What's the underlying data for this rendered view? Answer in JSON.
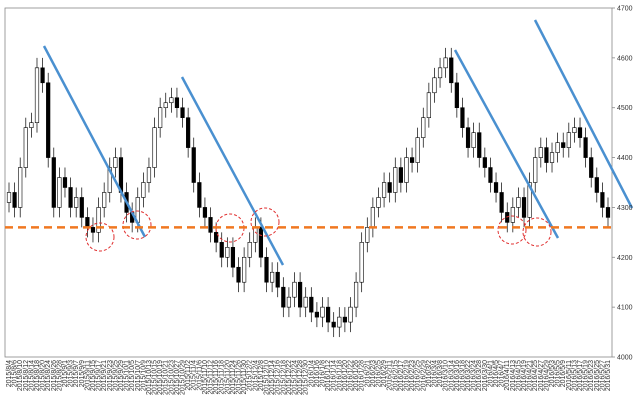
{
  "chart_data": {
    "type": "candlestick",
    "categories": [
      "2015/8/4",
      "2015/8/6",
      "2015/8/10",
      "2015/8/12",
      "2015/8/14",
      "2015/8/18",
      "2015/8/20",
      "2015/8/24",
      "2015/8/26",
      "2015/8/28",
      "2015/9/1",
      "2015/9/3",
      "2015/9/7",
      "2015/9/9",
      "2015/9/11",
      "2015/9/15",
      "2015/9/17",
      "2015/9/21",
      "2015/9/23",
      "2015/9/25",
      "2015/9/29",
      "2015/10/1",
      "2015/10/5",
      "2015/10/7",
      "2015/10/9",
      "2015/10/13",
      "2015/10/15",
      "2015/10/19",
      "2015/10/21",
      "2015/10/23",
      "2015/10/27",
      "2015/10/29",
      "2015/11/2",
      "2015/11/4",
      "2015/11/6",
      "2015/11/10",
      "2015/11/12",
      "2015/11/16",
      "2015/11/18",
      "2015/11/20",
      "2015/11/24",
      "2015/11/26",
      "2015/11/30",
      "2015/12/2",
      "2015/12/4",
      "2015/12/8",
      "2015/12/10",
      "2015/12/14",
      "2015/12/16",
      "2015/12/18",
      "2015/12/22",
      "2015/12/24",
      "2015/12/28",
      "2015/12/30",
      "2016/1/4",
      "2016/1/6",
      "2016/1/8",
      "2016/1/12",
      "2016/1/14",
      "2016/1/18",
      "2016/1/20",
      "2016/1/22",
      "2016/1/26",
      "2016/1/28",
      "2016/2/1",
      "2016/2/3",
      "2016/2/5",
      "2016/2/9",
      "2016/2/11",
      "2016/2/15",
      "2016/2/17",
      "2016/2/19",
      "2016/2/23",
      "2016/2/25",
      "2016/2/29",
      "2016/3/2",
      "2016/3/4",
      "2016/3/8",
      "2016/3/10",
      "2016/3/14",
      "2016/3/16",
      "2016/3/18",
      "2016/3/22",
      "2016/3/24",
      "2016/3/28",
      "2016/3/30",
      "2016/4/1",
      "2016/4/5",
      "2016/4/7",
      "2016/4/11",
      "2016/4/13",
      "2016/4/15",
      "2016/4/19",
      "2016/4/21",
      "2016/4/25",
      "2016/4/27",
      "2016/4/29",
      "2016/5/3",
      "2016/5/5",
      "2016/5/9",
      "2016/5/11",
      "2016/5/13",
      "2016/5/17",
      "2016/5/19",
      "2016/5/23",
      "2016/5/25",
      "2016/5/27",
      "2016/5/31"
    ],
    "open": [
      4310,
      4330,
      4300,
      4380,
      4460,
      4470,
      4580,
      4550,
      4400,
      4300,
      4360,
      4340,
      4300,
      4320,
      4280,
      4260,
      4250,
      4300,
      4330,
      4380,
      4400,
      4330,
      4290,
      4270,
      4320,
      4350,
      4380,
      4460,
      4500,
      4510,
      4520,
      4500,
      4480,
      4420,
      4350,
      4300,
      4280,
      4250,
      4230,
      4200,
      4220,
      4180,
      4150,
      4200,
      4230,
      4260,
      4200,
      4150,
      4170,
      4140,
      4100,
      4120,
      4150,
      4100,
      4120,
      4090,
      4080,
      4100,
      4070,
      4060,
      4080,
      4070,
      4100,
      4150,
      4230,
      4260,
      4300,
      4320,
      4350,
      4330,
      4380,
      4350,
      4400,
      4390,
      4440,
      4480,
      4530,
      4560,
      4580,
      4600,
      4550,
      4500,
      4460,
      4420,
      4450,
      4400,
      4380,
      4350,
      4330,
      4290,
      4270,
      4300,
      4320,
      4280,
      4350,
      4400,
      4420,
      4390,
      4410,
      4430,
      4420,
      4450,
      4460,
      4440,
      4400,
      4360,
      4330,
      4300
    ],
    "high": [
      4350,
      4350,
      4400,
      4480,
      4490,
      4600,
      4600,
      4570,
      4420,
      4380,
      4380,
      4360,
      4340,
      4340,
      4300,
      4280,
      4320,
      4350,
      4400,
      4420,
      4420,
      4350,
      4310,
      4340,
      4370,
      4400,
      4480,
      4520,
      4530,
      4540,
      4540,
      4520,
      4500,
      4440,
      4370,
      4320,
      4300,
      4270,
      4250,
      4240,
      4240,
      4200,
      4220,
      4250,
      4280,
      4280,
      4220,
      4190,
      4190,
      4160,
      4140,
      4170,
      4170,
      4140,
      4140,
      4110,
      4120,
      4120,
      4090,
      4100,
      4100,
      4120,
      4170,
      4250,
      4280,
      4320,
      4340,
      4370,
      4370,
      4400,
      4400,
      4420,
      4420,
      4460,
      4500,
      4550,
      4580,
      4600,
      4620,
      4620,
      4570,
      4520,
      4480,
      4470,
      4470,
      4420,
      4400,
      4370,
      4350,
      4310,
      4320,
      4340,
      4340,
      4370,
      4420,
      4440,
      4440,
      4430,
      4450,
      4450,
      4470,
      4480,
      4480,
      4460,
      4420,
      4380,
      4350,
      4320
    ],
    "low": [
      4290,
      4280,
      4280,
      4360,
      4440,
      4450,
      4530,
      4380,
      4280,
      4280,
      4320,
      4280,
      4280,
      4260,
      4240,
      4230,
      4230,
      4280,
      4310,
      4360,
      4310,
      4270,
      4250,
      4250,
      4300,
      4330,
      4360,
      4440,
      4480,
      4490,
      4480,
      4460,
      4400,
      4330,
      4280,
      4260,
      4230,
      4210,
      4180,
      4180,
      4160,
      4130,
      4130,
      4180,
      4210,
      4180,
      4130,
      4130,
      4120,
      4080,
      4080,
      4100,
      4080,
      4080,
      4070,
      4060,
      4060,
      4050,
      4040,
      4040,
      4050,
      4050,
      4080,
      4130,
      4210,
      4240,
      4280,
      4300,
      4310,
      4310,
      4330,
      4330,
      4370,
      4370,
      4420,
      4460,
      4510,
      4540,
      4560,
      4530,
      4480,
      4440,
      4400,
      4400,
      4380,
      4360,
      4330,
      4310,
      4270,
      4250,
      4250,
      4280,
      4260,
      4260,
      4330,
      4380,
      4370,
      4370,
      4390,
      4400,
      4400,
      4430,
      4420,
      4380,
      4340,
      4310,
      4280,
      4260
    ],
    "close": [
      4330,
      4300,
      4380,
      4460,
      4470,
      4580,
      4550,
      4400,
      4300,
      4360,
      4340,
      4300,
      4320,
      4280,
      4260,
      4250,
      4300,
      4330,
      4380,
      4400,
      4330,
      4290,
      4270,
      4320,
      4350,
      4380,
      4460,
      4500,
      4510,
      4520,
      4500,
      4480,
      4420,
      4350,
      4300,
      4280,
      4250,
      4230,
      4200,
      4220,
      4180,
      4150,
      4200,
      4230,
      4260,
      4200,
      4150,
      4170,
      4140,
      4100,
      4120,
      4150,
      4100,
      4120,
      4090,
      4080,
      4100,
      4070,
      4060,
      4080,
      4070,
      4100,
      4150,
      4230,
      4260,
      4300,
      4320,
      4350,
      4330,
      4380,
      4350,
      4400,
      4390,
      4440,
      4480,
      4530,
      4560,
      4580,
      4600,
      4550,
      4500,
      4460,
      4420,
      4450,
      4400,
      4380,
      4350,
      4330,
      4290,
      4270,
      4300,
      4320,
      4280,
      4350,
      4400,
      4420,
      4390,
      4410,
      4430,
      4420,
      4450,
      4460,
      4440,
      4400,
      4360,
      4330,
      4300,
      4280
    ],
    "up_color": "#ffffff",
    "down_color": "#000000",
    "ylim": [
      4000,
      4700
    ],
    "yticks": [
      4000,
      4100,
      4200,
      4300,
      4400,
      4500,
      4600,
      4700
    ],
    "hline": 4260,
    "hline_color": "#f07820"
  }
}
